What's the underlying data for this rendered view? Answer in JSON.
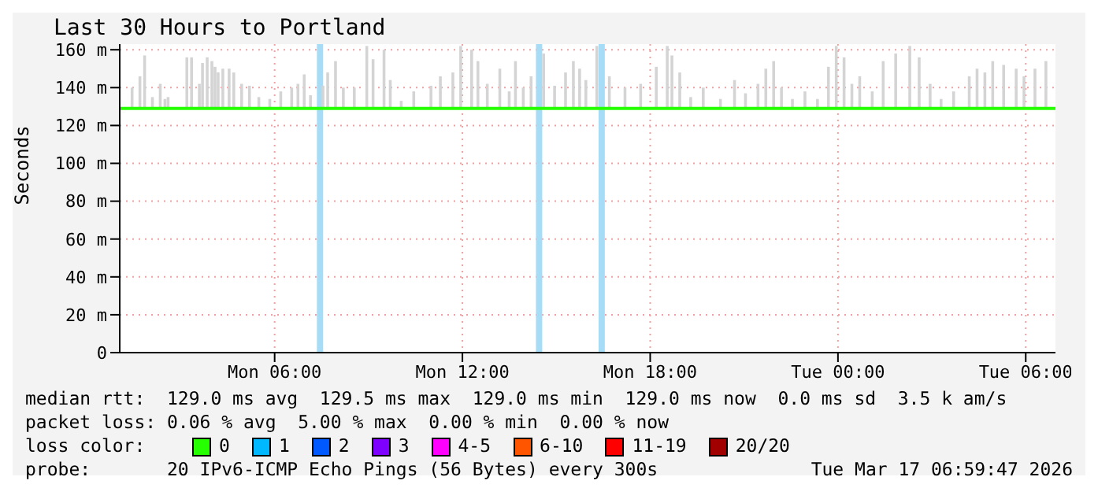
{
  "chart_data": {
    "type": "line",
    "title": "Last 30 Hours to Portland",
    "ylabel": "Seconds",
    "xlim": [
      "2026-03-16T01:03",
      "2026-03-17T06:57"
    ],
    "xticks": [
      {
        "value": "2026-03-16T06:00",
        "label": "Mon 06:00"
      },
      {
        "value": "2026-03-16T12:00",
        "label": "Mon 12:00"
      },
      {
        "value": "2026-03-16T18:00",
        "label": "Mon 18:00"
      },
      {
        "value": "2026-03-17T00:00",
        "label": "Tue 00:00"
      },
      {
        "value": "2026-03-17T06:00",
        "label": "Tue 06:00"
      }
    ],
    "ylim": [
      0,
      163
    ],
    "yticks": [
      {
        "value": 0,
        "label": "0"
      },
      {
        "value": 20,
        "label": "20 m"
      },
      {
        "value": 40,
        "label": "40 m"
      },
      {
        "value": 60,
        "label": "60 m"
      },
      {
        "value": 80,
        "label": "80 m"
      },
      {
        "value": 100,
        "label": "100 m"
      },
      {
        "value": 120,
        "label": "120 m"
      },
      {
        "value": 140,
        "label": "140 m"
      },
      {
        "value": 160,
        "label": "160 m"
      }
    ],
    "grid": true,
    "legend": "bottom",
    "legend_title": "loss color:",
    "marker": "none",
    "series": [
      {
        "type": "bar",
        "color": "#d4d4d4",
        "x": [
          "2026-03-16T01:27",
          "2026-03-16T01:42",
          "2026-03-16T01:51",
          "2026-03-16T02:06",
          "2026-03-16T02:21",
          "2026-03-16T02:30",
          "2026-03-16T02:36",
          "2026-03-16T03:12",
          "2026-03-16T03:21",
          "2026-03-16T03:36",
          "2026-03-16T03:42",
          "2026-03-16T03:51",
          "2026-03-16T04:00",
          "2026-03-16T04:06",
          "2026-03-16T04:12",
          "2026-03-16T04:21",
          "2026-03-16T04:33",
          "2026-03-16T04:42",
          "2026-03-16T04:57",
          "2026-03-16T05:12",
          "2026-03-16T05:30",
          "2026-03-16T05:51",
          "2026-03-16T06:12",
          "2026-03-16T06:33",
          "2026-03-16T06:45",
          "2026-03-16T06:57",
          "2026-03-16T07:09",
          "2026-03-16T07:33",
          "2026-03-16T07:42",
          "2026-03-16T07:57",
          "2026-03-16T08:12",
          "2026-03-16T08:33",
          "2026-03-16T08:57",
          "2026-03-16T09:09",
          "2026-03-16T09:30",
          "2026-03-16T09:42",
          "2026-03-16T10:03",
          "2026-03-16T10:27",
          "2026-03-16T11:00",
          "2026-03-16T11:18",
          "2026-03-16T11:42",
          "2026-03-16T11:57",
          "2026-03-16T12:18",
          "2026-03-16T12:30",
          "2026-03-16T12:48",
          "2026-03-16T13:12",
          "2026-03-16T13:30",
          "2026-03-16T13:42",
          "2026-03-16T13:57",
          "2026-03-16T14:12",
          "2026-03-16T14:36",
          "2026-03-16T14:57",
          "2026-03-16T15:18",
          "2026-03-16T15:33",
          "2026-03-16T15:45",
          "2026-03-16T15:57",
          "2026-03-16T16:18",
          "2026-03-16T16:42",
          "2026-03-16T17:12",
          "2026-03-16T17:42",
          "2026-03-16T18:12",
          "2026-03-16T18:33",
          "2026-03-16T18:42",
          "2026-03-16T18:57",
          "2026-03-16T19:18",
          "2026-03-16T19:42",
          "2026-03-16T20:15",
          "2026-03-16T20:42",
          "2026-03-16T21:03",
          "2026-03-16T21:27",
          "2026-03-16T21:42",
          "2026-03-16T21:57",
          "2026-03-16T22:12",
          "2026-03-16T22:33",
          "2026-03-16T22:57",
          "2026-03-16T23:21",
          "2026-03-16T23:42",
          "2026-03-16T23:57",
          "2026-03-17T00:12",
          "2026-03-17T00:27",
          "2026-03-17T00:42",
          "2026-03-17T01:06",
          "2026-03-17T01:27",
          "2026-03-17T01:51",
          "2026-03-17T02:18",
          "2026-03-17T02:36",
          "2026-03-17T02:57",
          "2026-03-17T03:18",
          "2026-03-17T03:42",
          "2026-03-17T04:12",
          "2026-03-17T04:27",
          "2026-03-17T04:42",
          "2026-03-17T04:57",
          "2026-03-17T05:18",
          "2026-03-17T05:42",
          "2026-03-17T05:57",
          "2026-03-17T06:18",
          "2026-03-17T06:39"
        ],
        "base": [
          129,
          129,
          129,
          129,
          129,
          129,
          129,
          129,
          129,
          129,
          129,
          129,
          129,
          129,
          129,
          129,
          129,
          129,
          129,
          129,
          129,
          129,
          129,
          129,
          129,
          129,
          129,
          129,
          129,
          129,
          129,
          129,
          129,
          129,
          129,
          129,
          129,
          129,
          129,
          129,
          129,
          129,
          129,
          129,
          129,
          129,
          129,
          129,
          129,
          129,
          129,
          129,
          129,
          129,
          129,
          129,
          129,
          129,
          129,
          129,
          129,
          129,
          129,
          129,
          129,
          129,
          129,
          129,
          129,
          129,
          129,
          129,
          129,
          129,
          129,
          129,
          129,
          129,
          129,
          129,
          129,
          129,
          129,
          129,
          129,
          129,
          129,
          129,
          129,
          129,
          129,
          129,
          129,
          129,
          129,
          129,
          129,
          129
        ],
        "values": [
          11,
          17,
          28,
          6,
          13,
          5,
          6,
          27,
          27,
          13,
          24,
          27,
          25,
          22,
          19,
          21,
          21,
          19,
          13,
          12,
          6,
          5,
          9,
          11,
          13,
          18,
          7,
          12,
          19,
          25,
          11,
          11,
          33,
          26,
          31,
          15,
          4,
          9,
          12,
          17,
          19,
          33,
          31,
          25,
          13,
          21,
          9,
          25,
          11,
          17,
          29,
          12,
          19,
          25,
          21,
          15,
          33,
          17,
          11,
          13,
          22,
          33,
          28,
          19,
          6,
          11,
          5,
          15,
          8,
          13,
          21,
          25,
          11,
          5,
          9,
          5,
          22,
          33,
          27,
          13,
          17,
          9,
          25,
          29,
          33,
          27,
          13,
          5,
          9,
          17,
          21,
          19,
          25,
          23,
          21,
          17,
          21,
          25
        ]
      },
      {
        "name": "0",
        "color": "#26ff00",
        "x": [
          "2026-03-16T01:03",
          "2026-03-17T06:57"
        ],
        "values": [
          129,
          129
        ]
      },
      {
        "name": "1",
        "color": "#00b8ff"
      },
      {
        "name": "2",
        "color": "#0059ff"
      },
      {
        "name": "3",
        "color": "#7e00ff"
      },
      {
        "name": "4-5",
        "color": "#ff00ff"
      },
      {
        "name": "6-10",
        "color": "#ff5500"
      },
      {
        "name": "11-19",
        "color": "#ff0000"
      },
      {
        "name": "20/20",
        "color": "#a10000"
      }
    ],
    "bands": [
      {
        "axis": "x",
        "from": "2026-03-16T07:21",
        "to": "2026-03-16T07:33",
        "color": "#a6dcf5"
      },
      {
        "axis": "x",
        "from": "2026-03-16T14:21",
        "to": "2026-03-16T14:33",
        "color": "#a6dcf5"
      },
      {
        "axis": "x",
        "from": "2026-03-16T16:21",
        "to": "2026-03-16T16:33",
        "color": "#a6dcf5"
      }
    ],
    "annotations": [
      "median rtt:  129.0 ms avg  129.5 ms max  129.0 ms min  129.0 ms now  0.0 ms sd  3.5 k am/s",
      "packet loss: 0.06 % avg  5.00 % max  0.00 % min  0.00 % now",
      "probe:       20 IPv6-ICMP Echo Pings (56 Bytes) every 300s",
      "Tue Mar 17 06:59:47 2026"
    ]
  }
}
